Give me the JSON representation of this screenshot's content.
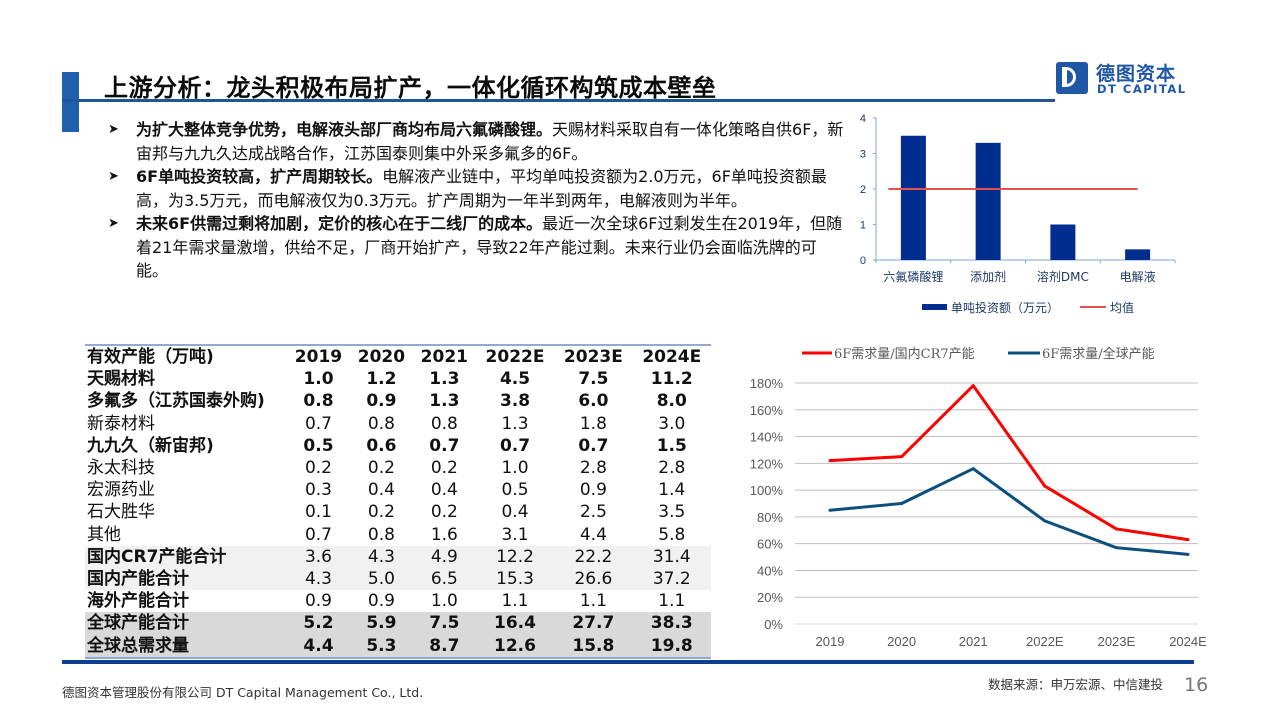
{
  "header": {
    "title": "上游分析：龙头积极布局扩产，一体化循环构筑成本壁垒",
    "logo_cn": "德图资本",
    "logo_en": "DT CAPITAL",
    "brand_color": "#1f56a6"
  },
  "bullets": [
    {
      "icon": "arrowhead-bullet-icon",
      "bold": "为扩大整体竞争优势，电解液头部厂商均布局六氟磷酸锂。",
      "text": "天赐材料采取自有一体化策略自供6F，新宙邦与九九久达成战略合作，江苏国泰则集中外采多氟多的6F。"
    },
    {
      "icon": "arrowhead-bullet-icon",
      "bold": "6F单吨投资较高，扩产周期较长。",
      "text": "电解液产业链中，平均单吨投资额为2.0万元，6F单吨投资额最高，为3.5万元，而电解液仅为0.3万元。扩产周期为一年半到两年，电解液则为半年。"
    },
    {
      "icon": "arrowhead-bullet-icon",
      "bold": "未来6F供需过剩将加剧，定价的核心在于二线厂的成本。",
      "text": "最近一次全球6F过剩发生在2019年，但随着21年需求量激增，供给不足，厂商开始扩产，导致22年产能过剩。未来行业仍会面临洗牌的可能。"
    }
  ],
  "table": {
    "header": [
      "有效产能（万吨)",
      "2019",
      "2020",
      "2021",
      "2022E",
      "2023E",
      "2024E"
    ],
    "rows": [
      {
        "name": "天赐材料",
        "values": [
          "1.0",
          "1.2",
          "1.3",
          "4.5",
          "7.5",
          "11.2"
        ],
        "style": "bold"
      },
      {
        "name": "多氟多（江苏国泰外购)",
        "values": [
          "0.8",
          "0.9",
          "1.3",
          "3.8",
          "6.0",
          "8.0"
        ],
        "style": "bold"
      },
      {
        "name": "新泰材料",
        "values": [
          "0.7",
          "0.8",
          "0.8",
          "1.3",
          "1.8",
          "3.0"
        ],
        "style": "normal"
      },
      {
        "name": "九九久（新宙邦)",
        "values": [
          "0.5",
          "0.6",
          "0.7",
          "0.7",
          "0.7",
          "1.5"
        ],
        "style": "bold"
      },
      {
        "name": "永太科技",
        "values": [
          "0.2",
          "0.2",
          "0.2",
          "1.0",
          "2.8",
          "2.8"
        ],
        "style": "normal"
      },
      {
        "name": "宏源药业",
        "values": [
          "0.3",
          "0.4",
          "0.4",
          "0.5",
          "0.9",
          "1.4"
        ],
        "style": "normal"
      },
      {
        "name": "石大胜华",
        "values": [
          "0.1",
          "0.2",
          "0.2",
          "0.4",
          "2.5",
          "3.5"
        ],
        "style": "normal"
      },
      {
        "name": "其他",
        "values": [
          "0.7",
          "0.8",
          "1.6",
          "3.1",
          "4.4",
          "5.8"
        ],
        "style": "normal"
      },
      {
        "name": "国内CR7产能合计",
        "values": [
          "3.6",
          "4.3",
          "4.9",
          "12.2",
          "22.2",
          "31.4"
        ],
        "style": "lightgray"
      },
      {
        "name": "国内产能合计",
        "values": [
          "4.3",
          "5.0",
          "6.5",
          "15.3",
          "26.6",
          "37.2"
        ],
        "style": "lightgray"
      },
      {
        "name": "海外产能合计",
        "values": [
          "0.9",
          "0.9",
          "1.0",
          "1.1",
          "1.1",
          "1.1"
        ],
        "style": "normal-namebold"
      },
      {
        "name": "全球产能合计",
        "values": [
          "5.2",
          "5.9",
          "7.5",
          "16.4",
          "27.7",
          "38.3"
        ],
        "style": "darkgray"
      },
      {
        "name": "全球总需求量",
        "values": [
          "4.4",
          "5.3",
          "8.7",
          "12.6",
          "15.8",
          "19.8"
        ],
        "style": "darkgray"
      }
    ]
  },
  "chart_data": [
    {
      "type": "bar",
      "title": "",
      "categories": [
        "六氟磷酸锂",
        "添加剂",
        "溶剂DMC",
        "电解液"
      ],
      "series": [
        {
          "name": "单吨投资额（万元）",
          "values": [
            3.5,
            3.3,
            1.0,
            0.3
          ],
          "color": "#002d8f",
          "kind": "bar"
        },
        {
          "name": "均值",
          "values": [
            2.0,
            2.0,
            2.0,
            2.0
          ],
          "color": "#e5514f",
          "kind": "line"
        }
      ],
      "yticks": [
        0,
        1,
        2,
        3,
        4
      ],
      "ylim": [
        0,
        4
      ],
      "xlabel": "",
      "ylabel": "",
      "grid": false,
      "legend": "bottom"
    },
    {
      "type": "line",
      "title": "",
      "categories": [
        "2019",
        "2020",
        "2021",
        "2022E",
        "2023E",
        "2024E"
      ],
      "series": [
        {
          "name": "6F需求量/国内CR7产能",
          "values": [
            1.22,
            1.25,
            1.78,
            1.03,
            0.71,
            0.63
          ],
          "color": "#ff0000"
        },
        {
          "name": "6F需求量/全球产能",
          "values": [
            0.85,
            0.9,
            1.16,
            0.77,
            0.57,
            0.52
          ],
          "color": "#0b4f7f"
        }
      ],
      "yticks": [
        "0%",
        "20%",
        "40%",
        "60%",
        "80%",
        "100%",
        "120%",
        "140%",
        "160%",
        "180%"
      ],
      "ylim": [
        0,
        1.8
      ],
      "xlabel": "",
      "ylabel": "",
      "grid": true,
      "legend": "top"
    }
  ],
  "footer": {
    "company": "德图资本管理股份有限公司  DT Capital Management  Co., Ltd.",
    "source": "数据来源：申万宏源、中信建投",
    "page_number": "16"
  }
}
